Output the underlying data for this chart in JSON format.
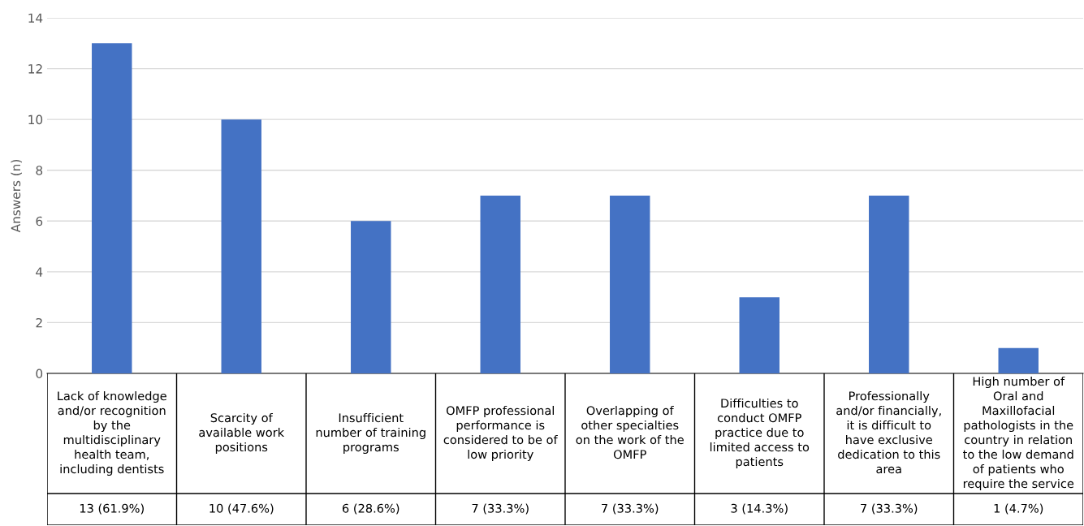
{
  "chart_data": {
    "type": "bar",
    "ylabel": "Answers (n)",
    "categories": [
      "Lack of knowledge and/or recognition by the multidisciplinary health team, including dentists",
      "Scarcity of available work positions",
      "Insufficient number of training programs",
      "OMFP professional performance is considered to be of low priority",
      "Overlapping of other specialties on the work of the OMFP",
      "Difficulties to conduct OMFP practice due to limited access to patients",
      "Professionally and/or financially, it is difficult to have exclusive dedication to this area",
      "High number of Oral and Maxillofacial pathologists in the country in relation to the low demand of patients who require the service"
    ],
    "values": [
      13,
      10,
      6,
      7,
      7,
      3,
      7,
      1
    ],
    "value_labels": [
      "13 (61.9%)",
      "10 (47.6%)",
      "6 (28.6%)",
      "7 (33.3%)",
      "7 (33.3%)",
      "3 (14.3%)",
      "7 (33.3%)",
      "1 (4.7%)"
    ],
    "color": "#4472c4",
    "ylim": [
      0,
      14
    ],
    "yticks": [
      0,
      2,
      4,
      6,
      8,
      10,
      12,
      14
    ],
    "grid": "y"
  }
}
